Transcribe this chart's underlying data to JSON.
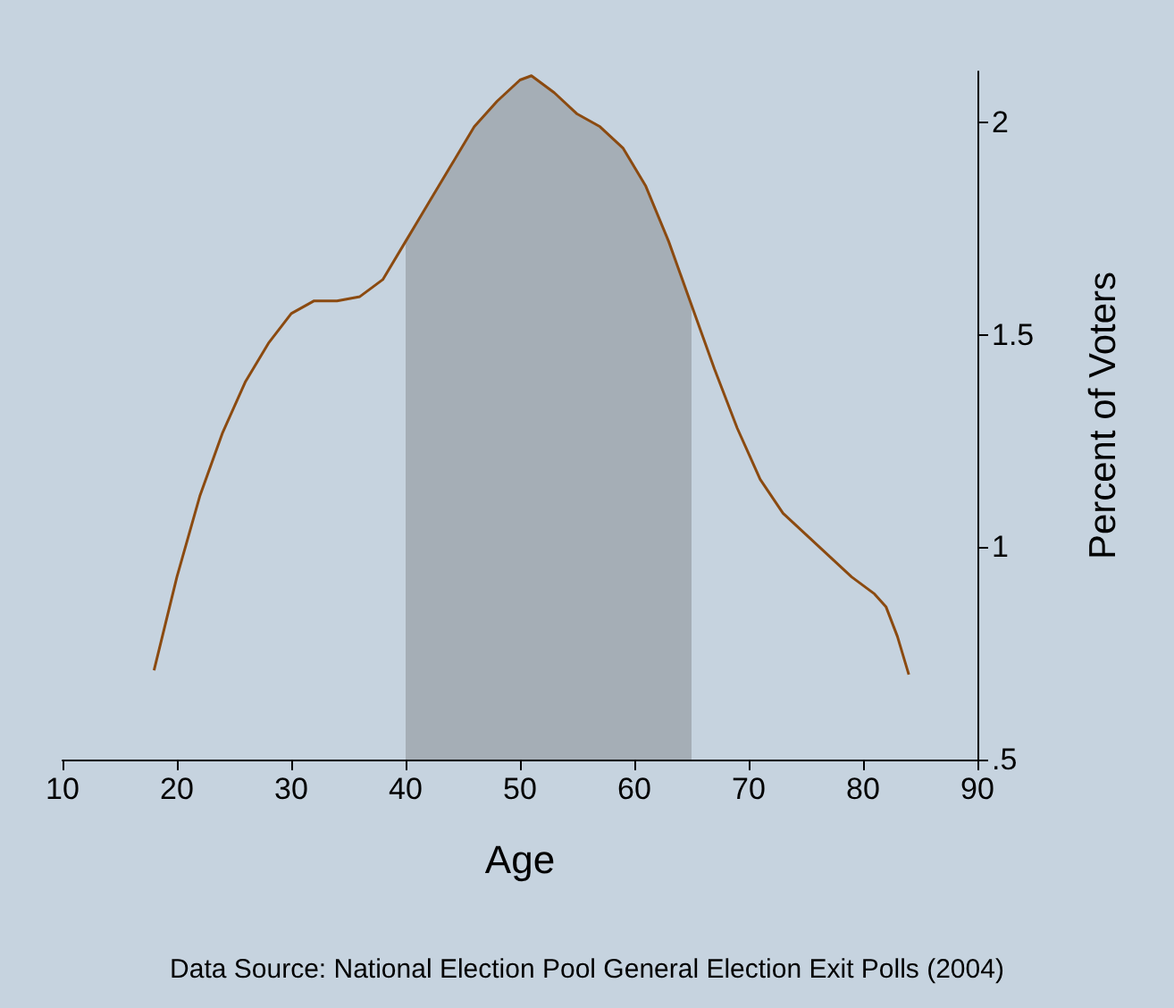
{
  "chart_data": {
    "type": "line",
    "xlabel": "Age",
    "ylabel": "Percent of Voters",
    "annotations": [
      "Data Source: National Election Pool General Election Exit Polls (2004)"
    ],
    "xlim": [
      10,
      90
    ],
    "xticks": [
      10,
      20,
      30,
      40,
      50,
      60,
      70,
      80,
      90
    ],
    "ylim": [
      0.5,
      2.12
    ],
    "yticks": [
      {
        "value": 0.5,
        "label": ".5"
      },
      1,
      1.5,
      2
    ],
    "grid": false,
    "marker": "none",
    "series": [
      {
        "color": "#8b4a10",
        "x": [
          18,
          19,
          20,
          22,
          24,
          26,
          28,
          30,
          32,
          34,
          36,
          38,
          40,
          42,
          44,
          46,
          48,
          50,
          51,
          53,
          55,
          57,
          59,
          61,
          63,
          65,
          67,
          69,
          71,
          73,
          75,
          77,
          79,
          81,
          82,
          83,
          84
        ],
        "values": [
          0.71,
          0.82,
          0.93,
          1.12,
          1.27,
          1.39,
          1.48,
          1.55,
          1.58,
          1.58,
          1.59,
          1.63,
          1.72,
          1.81,
          1.9,
          1.99,
          2.05,
          2.1,
          2.11,
          2.07,
          2.02,
          1.99,
          1.94,
          1.85,
          1.72,
          1.57,
          1.42,
          1.28,
          1.16,
          1.08,
          1.03,
          0.98,
          0.93,
          0.89,
          0.86,
          0.79,
          0.7
        ]
      },
      {
        "type": "area",
        "color": "#5a5a5a",
        "x": [
          40,
          42,
          44,
          46,
          48,
          50,
          51,
          53,
          55,
          57,
          59,
          61,
          63,
          65
        ],
        "values": [
          1.72,
          1.81,
          1.9,
          1.99,
          2.05,
          2.1,
          2.11,
          2.07,
          2.02,
          1.99,
          1.94,
          1.85,
          1.72,
          1.57
        ]
      }
    ]
  }
}
